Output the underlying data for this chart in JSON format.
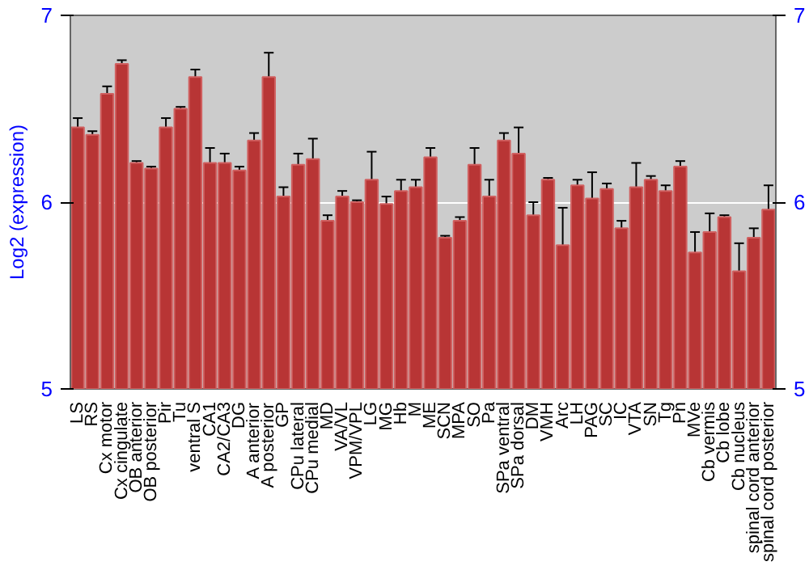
{
  "chart_data": {
    "type": "bar",
    "ylabel": "Log2 (expression)",
    "categories": [
      "LS",
      "RS",
      "Cx motor",
      "Cx cingulate",
      "OB anterior",
      "OB posterior",
      "Pir",
      "Tu",
      "ventral S",
      "CA1",
      "CA2/CA3",
      "DG",
      "A anterior",
      "A posterior",
      "GP",
      "CPu lateral",
      "CPu medial",
      "MD",
      "VA/VL",
      "VPM/VPL",
      "LG",
      "MG",
      "Hb",
      "M",
      "ME",
      "SCN",
      "MPA",
      "SO",
      "Pa",
      "SPa ventral",
      "SPa dorsal",
      "DM",
      "VMH",
      "Arc",
      "LH",
      "PAG",
      "SC",
      "IC",
      "VTA",
      "SN",
      "Tg",
      "Pn",
      "MVe",
      "Cb vermis",
      "Cb lobe",
      "Cb nucleus",
      "spinal cord anterior",
      "spinal cord posterior"
    ],
    "values": [
      6.4,
      6.36,
      6.58,
      6.74,
      6.21,
      6.18,
      6.4,
      6.5,
      6.67,
      6.21,
      6.21,
      6.17,
      6.33,
      6.67,
      6.03,
      6.2,
      6.23,
      5.9,
      6.03,
      6.0,
      6.12,
      5.99,
      6.06,
      6.08,
      6.24,
      5.81,
      5.9,
      6.2,
      6.03,
      6.33,
      6.26,
      5.93,
      6.12,
      5.77,
      6.09,
      6.02,
      6.07,
      5.86,
      6.08,
      6.12,
      6.06,
      6.19,
      5.73,
      5.84,
      5.92,
      5.63,
      5.81,
      5.96
    ],
    "errors": [
      0.05,
      0.02,
      0.04,
      0.02,
      0.01,
      0.01,
      0.05,
      0.01,
      0.04,
      0.08,
      0.05,
      0.02,
      0.04,
      0.13,
      0.05,
      0.06,
      0.11,
      0.03,
      0.03,
      0.01,
      0.15,
      0.04,
      0.06,
      0.04,
      0.05,
      0.01,
      0.02,
      0.09,
      0.09,
      0.04,
      0.14,
      0.07,
      0.01,
      0.2,
      0.03,
      0.14,
      0.03,
      0.04,
      0.13,
      0.02,
      0.03,
      0.03,
      0.11,
      0.1,
      0.01,
      0.15,
      0.05,
      0.13
    ],
    "color": "#b83535",
    "ylim": [
      5,
      7
    ],
    "yticks": [
      5,
      6,
      7
    ],
    "y2lim": [
      5,
      7
    ],
    "y2ticks": [
      5,
      6,
      7
    ],
    "grid": "y"
  }
}
